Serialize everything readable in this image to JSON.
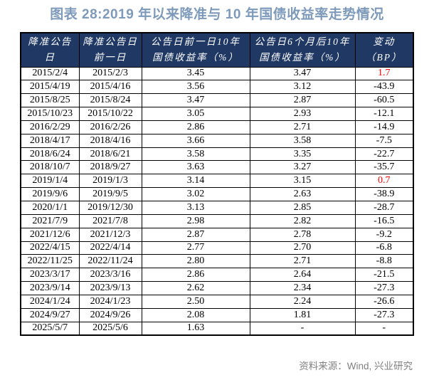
{
  "title": "图表 28:2019 年以来降准与 10 年国债收益率走势情况",
  "source_note": "资料来源：Wind, 兴业研究",
  "colors": {
    "header_bg": "#1F3864",
    "header_text": "#FFFFFF",
    "title_text": "#7E9ABB",
    "positive_change": "#FF0000",
    "body_text": "#000000",
    "border": "#000000",
    "source_text": "#808080"
  },
  "table": {
    "header_lines": [
      [
        "降准公告日"
      ],
      [
        "降准公告日",
        "前一日"
      ],
      [
        "公告日前一日10年",
        "国债收益率（%）"
      ],
      [
        "公告日6个月后10年",
        "国债收益率（%）"
      ],
      [
        "变动",
        "（BP）"
      ]
    ],
    "cell_names": [
      "cell-announce-date",
      "cell-prev-day",
      "cell-yield-before",
      "cell-yield-6m-after",
      "cell-change-bp"
    ]
  },
  "chart_data": {
    "type": "table",
    "title": "图表 28:2019 年以来降准与 10 年国债收益率走势情况",
    "columns": [
      "降准公告日",
      "降准公告日前一日",
      "公告日前一日10年国债收益率（%）",
      "公告日6个月后10年国债收益率（%）",
      "变动（BP）"
    ],
    "rows": [
      {
        "cells": [
          "2015/2/4",
          "2015/2/3",
          "3.45",
          "3.47",
          "1.7"
        ],
        "change_red": true
      },
      {
        "cells": [
          "2015/4/19",
          "2015/4/16",
          "3.56",
          "3.12",
          "-43.9"
        ],
        "change_red": false
      },
      {
        "cells": [
          "2015/8/25",
          "2015/8/24",
          "3.47",
          "2.87",
          "-60.5"
        ],
        "change_red": false
      },
      {
        "cells": [
          "2015/10/23",
          "2015/10/22",
          "3.05",
          "2.93",
          "-12.1"
        ],
        "change_red": false
      },
      {
        "cells": [
          "2016/2/29",
          "2016/2/26",
          "2.86",
          "2.71",
          "-14.9"
        ],
        "change_red": false
      },
      {
        "cells": [
          "2018/4/17",
          "2018/4/16",
          "3.66",
          "3.58",
          "-7.5"
        ],
        "change_red": false
      },
      {
        "cells": [
          "2018/6/24",
          "2018/6/21",
          "3.58",
          "3.35",
          "-22.7"
        ],
        "change_red": false
      },
      {
        "cells": [
          "2018/10/7",
          "2018/9/27",
          "3.63",
          "3.27",
          "-35.7"
        ],
        "change_red": false
      },
      {
        "cells": [
          "2019/1/4",
          "2019/1/3",
          "3.14",
          "3.15",
          "0.7"
        ],
        "change_red": true
      },
      {
        "cells": [
          "2019/9/6",
          "2019/9/5",
          "3.02",
          "2.63",
          "-38.9"
        ],
        "change_red": false
      },
      {
        "cells": [
          "2020/1/1",
          "2019/12/30",
          "3.13",
          "2.85",
          "-28.7"
        ],
        "change_red": false
      },
      {
        "cells": [
          "2021/7/9",
          "2021/7/8",
          "2.98",
          "2.82",
          "-16.5"
        ],
        "change_red": false
      },
      {
        "cells": [
          "2021/12/6",
          "2021/12/3",
          "2.87",
          "2.78",
          "-9.2"
        ],
        "change_red": false
      },
      {
        "cells": [
          "2022/4/15",
          "2022/4/14",
          "2.77",
          "2.70",
          "-6.8"
        ],
        "change_red": false
      },
      {
        "cells": [
          "2022/11/25",
          "2022/11/24",
          "2.80",
          "2.71",
          "-8.8"
        ],
        "change_red": false
      },
      {
        "cells": [
          "2023/3/17",
          "2023/3/16",
          "2.86",
          "2.64",
          "-21.5"
        ],
        "change_red": false
      },
      {
        "cells": [
          "2023/9/14",
          "2023/9/13",
          "2.62",
          "2.34",
          "-27.3"
        ],
        "change_red": false
      },
      {
        "cells": [
          "2024/1/24",
          "2024/1/23",
          "2.50",
          "2.24",
          "-26.6"
        ],
        "change_red": false
      },
      {
        "cells": [
          "2024/9/27",
          "2024/9/26",
          "2.08",
          "1.81",
          "-27.3"
        ],
        "change_red": false
      },
      {
        "cells": [
          "2025/5/7",
          "2025/5/6",
          "1.63",
          "-",
          "-"
        ],
        "change_red": false
      }
    ]
  }
}
